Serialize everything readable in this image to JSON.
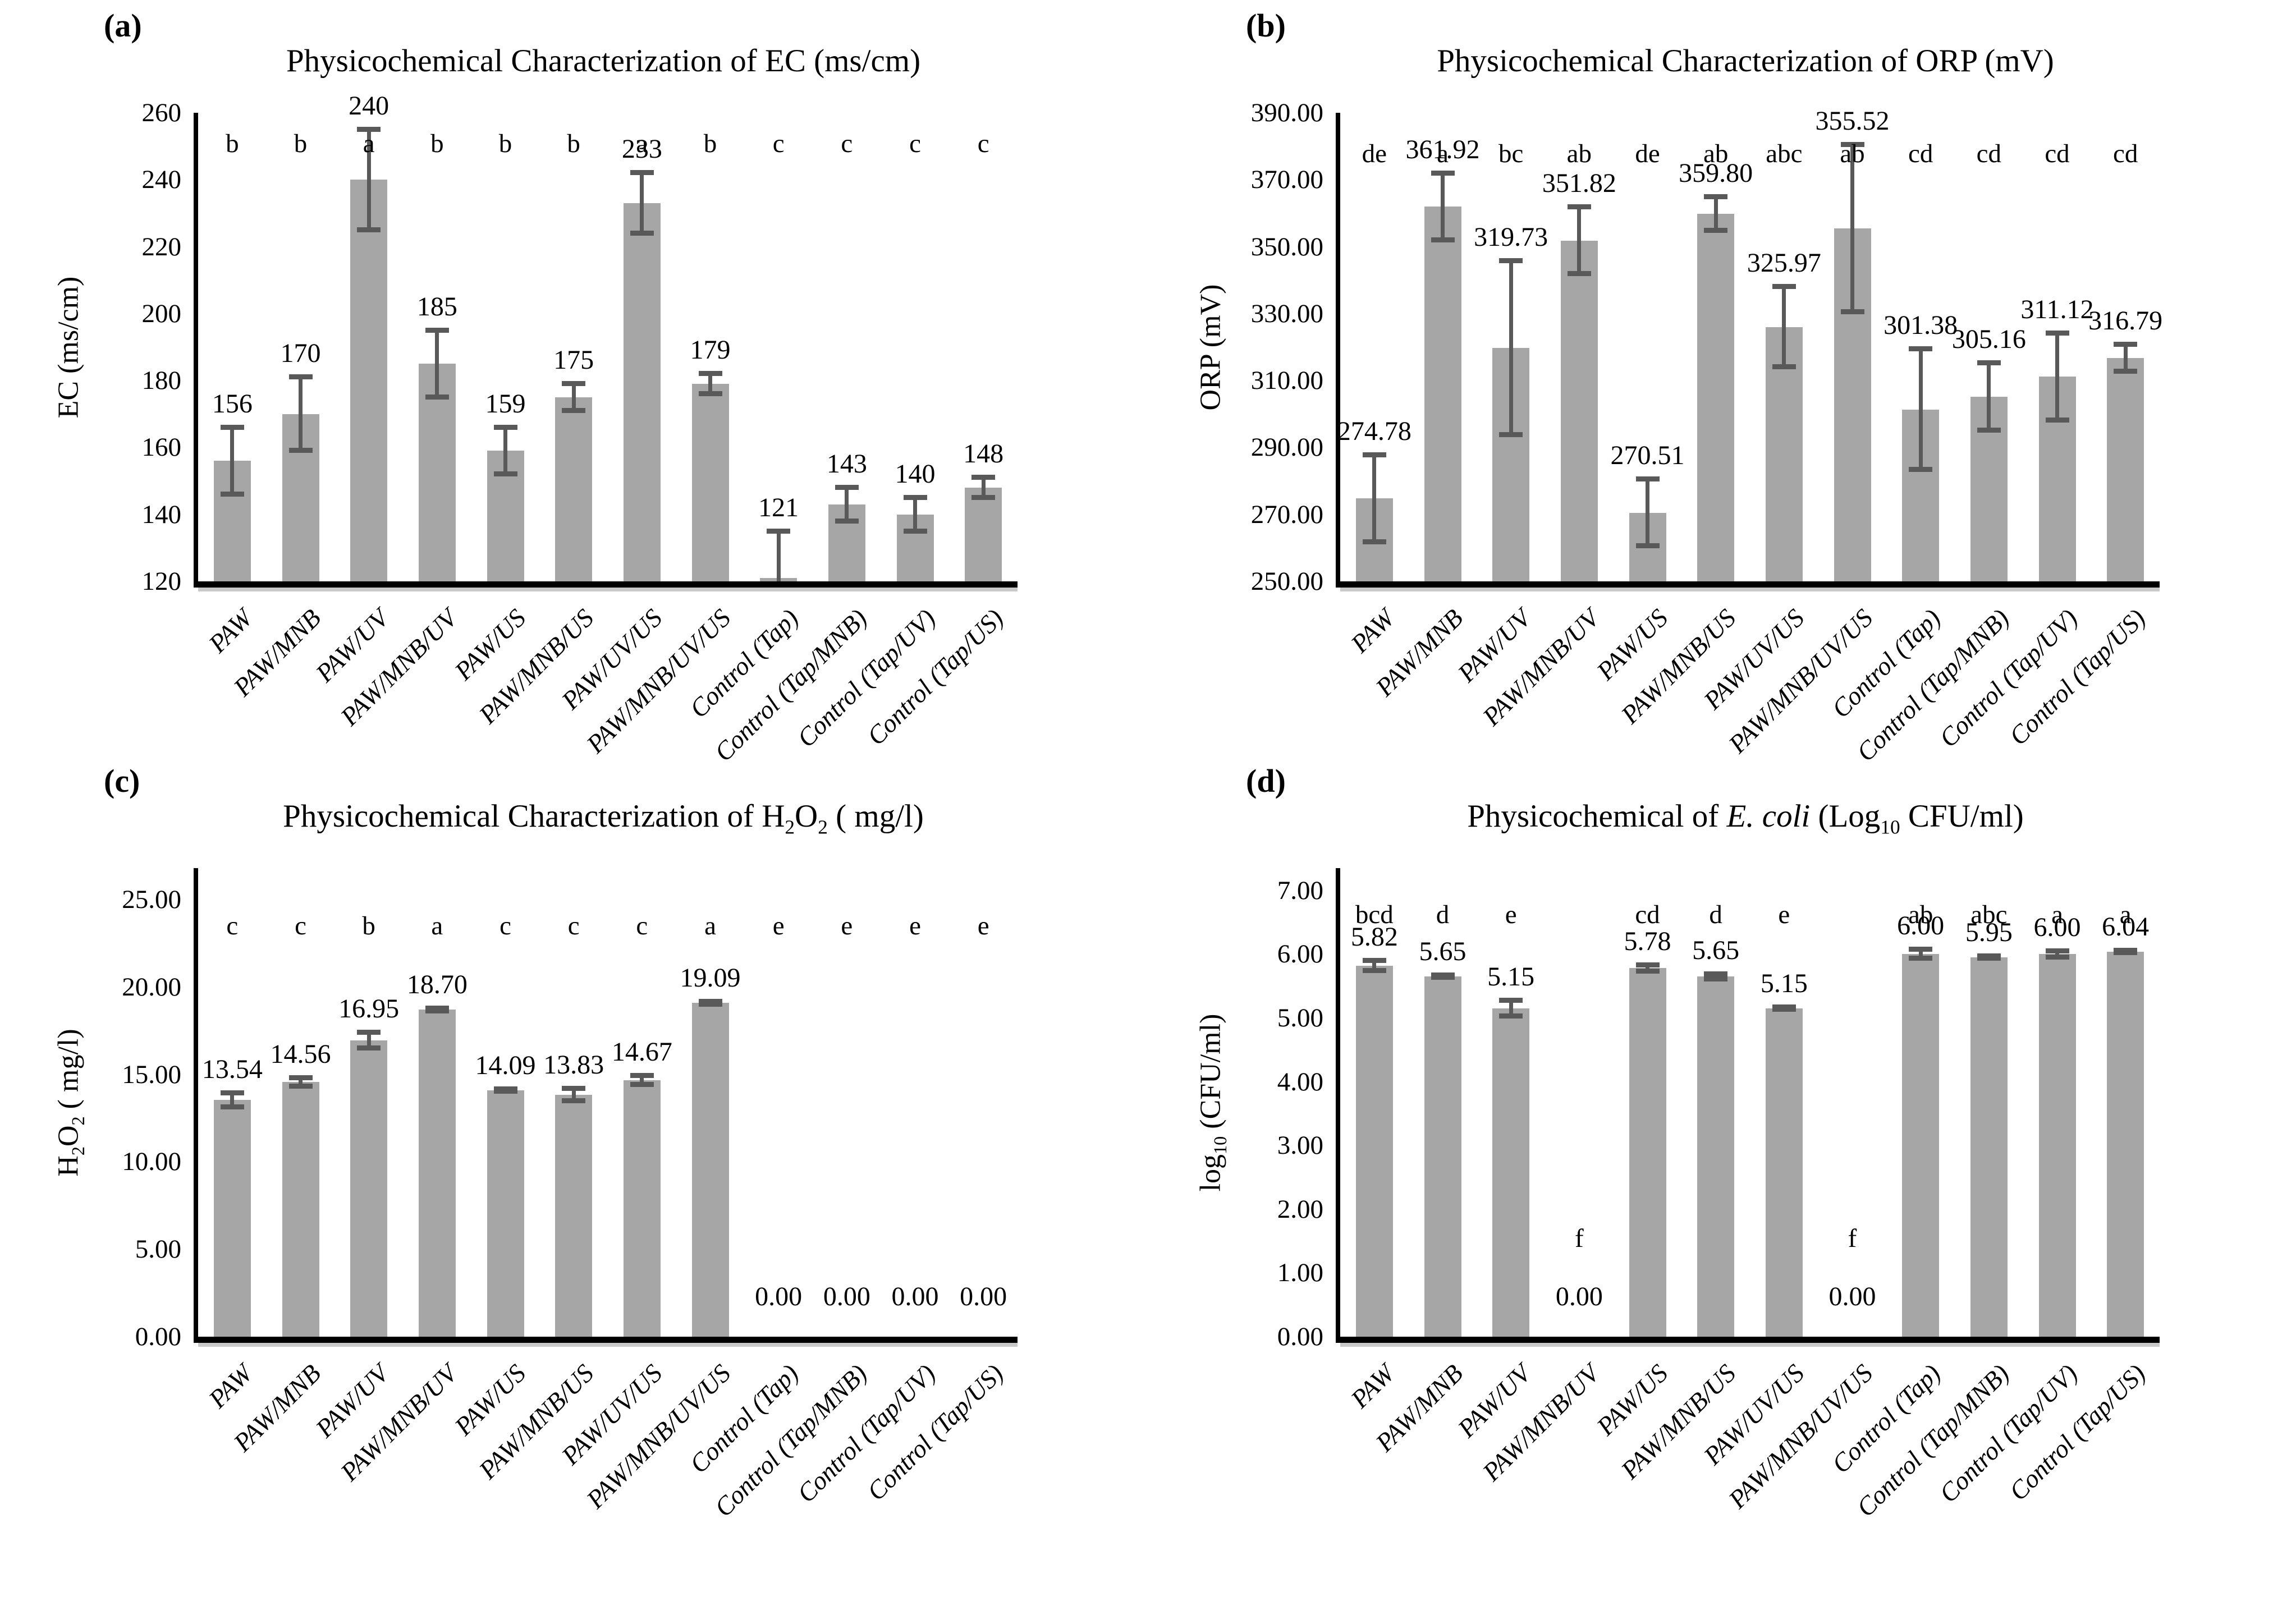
{
  "page": {
    "background": "#ffffff"
  },
  "colors": {
    "bar": "#a6a6a6",
    "error_bar": "#595959",
    "axis": "#000000",
    "axis_shadow": "#c9c9c9",
    "text": "#000000"
  },
  "chart_data": [
    {
      "type": "bar",
      "panel_label": "(a)",
      "title": "Physicochemical Characterization of EC (ms/cm)",
      "xlabel": "",
      "ylabel": "EC (ms/cm)",
      "ylim": [
        120,
        260
      ],
      "ytick_step": 20,
      "ytick_decimals": 0,
      "axis_headroom_units": 0,
      "grid": false,
      "legend": "none",
      "categories": [
        "PAW",
        "PAW/MNB",
        "PAW/UV",
        "PAW/MNB/UV",
        "PAW/US",
        "PAW/MNB/US",
        "PAW/UV/US",
        "PAW/MNB/UV/US",
        "Control (Tap)",
        "Control (Tap/MNB)",
        "Control (Tap/UV)",
        "Control (Tap/US)"
      ],
      "value_labels": [
        "156",
        "170",
        "240",
        "185",
        "159",
        "175",
        "233",
        "179",
        "121",
        "143",
        "140",
        "148"
      ],
      "values": [
        156,
        170,
        240,
        185,
        159,
        175,
        233,
        179,
        121,
        143,
        140,
        148
      ],
      "errors": [
        10,
        11,
        15,
        10,
        7,
        4,
        9,
        3,
        14,
        5,
        5,
        3
      ],
      "sig_letters": [
        "b",
        "b",
        "a",
        "b",
        "b",
        "b",
        "a",
        "b",
        "c",
        "c",
        "c",
        "c"
      ],
      "zero_letter_low": false
    },
    {
      "type": "bar",
      "panel_label": "(b)",
      "title": "Physicochemical Characterization of ORP (mV)",
      "xlabel": "",
      "ylabel": "ORP (mV)",
      "ylim": [
        250,
        390
      ],
      "ytick_step": 20,
      "ytick_decimals": 2,
      "axis_headroom_units": 0,
      "grid": false,
      "legend": "none",
      "categories": [
        "PAW",
        "PAW/MNB",
        "PAW/UV",
        "PAW/MNB/UV",
        "PAW/US",
        "PAW/MNB/US",
        "PAW/UV/US",
        "PAW/MNB/UV/US",
        "Control (Tap)",
        "Control (Tap/MNB)",
        "Control (Tap/UV)",
        "Control (Tap/US)"
      ],
      "value_labels": [
        "274.78",
        "361.92",
        "319.73",
        "351.82",
        "270.51",
        "359.80",
        "325.97",
        "355.52",
        "301.38",
        "305.16",
        "311.12",
        "316.79"
      ],
      "values": [
        274.78,
        361.92,
        319.73,
        351.82,
        270.51,
        359.8,
        325.97,
        355.52,
        301.38,
        305.16,
        311.12,
        316.79
      ],
      "errors": [
        13,
        10,
        26,
        10,
        10,
        5,
        12,
        25,
        18,
        10,
        13,
        4
      ],
      "sig_letters": [
        "de",
        "a",
        "bc",
        "ab",
        "de",
        "ab",
        "abc",
        "ab",
        "cd",
        "cd",
        "cd",
        "cd"
      ],
      "zero_letter_low": false
    },
    {
      "type": "bar",
      "panel_label": "(c)",
      "title": "Physicochemical Characterization of H2O2 ( mg/l)",
      "xlabel": "",
      "ylabel": "H2O2 ( mg/l)",
      "ylim": [
        0,
        25
      ],
      "ytick_step": 5,
      "ytick_decimals": 2,
      "axis_headroom_units": 1.8,
      "grid": false,
      "legend": "none",
      "categories": [
        "PAW",
        "PAW/MNB",
        "PAW/UV",
        "PAW/MNB/UV",
        "PAW/US",
        "PAW/MNB/US",
        "PAW/UV/US",
        "PAW/MNB/UV/US",
        "Control (Tap)",
        "Control (Tap/MNB)",
        "Control (Tap/UV)",
        "Control (Tap/US)"
      ],
      "value_labels": [
        "13.54",
        "14.56",
        "16.95",
        "18.70",
        "14.09",
        "13.83",
        "14.67",
        "19.09",
        "0.00",
        "0.00",
        "0.00",
        "0.00"
      ],
      "values": [
        13.54,
        14.56,
        16.95,
        18.7,
        14.09,
        13.83,
        14.67,
        19.09,
        0,
        0,
        0,
        0
      ],
      "errors": [
        0.4,
        0.25,
        0.45,
        0.08,
        0.06,
        0.35,
        0.25,
        0.08,
        0,
        0,
        0,
        0
      ],
      "sig_letters": [
        "c",
        "c",
        "b",
        "a",
        "c",
        "c",
        "c",
        "a",
        "e",
        "e",
        "e",
        "e"
      ],
      "zero_letter_low": false
    },
    {
      "type": "bar",
      "panel_label": "(d)",
      "title": "Physicochemical of E. coli (Log10 CFU/ml)",
      "xlabel": "",
      "ylabel": "log10 (CFU/ml)",
      "ylim": [
        0,
        7
      ],
      "ytick_step": 1,
      "ytick_decimals": 2,
      "axis_headroom_units": 0.35,
      "grid": false,
      "legend": "none",
      "categories": [
        "PAW",
        "PAW/MNB",
        "PAW/UV",
        "PAW/MNB/UV",
        "PAW/US",
        "PAW/MNB/US",
        "PAW/UV/US",
        "PAW/MNB/UV/US",
        "Control (Tap)",
        "Control (Tap/MNB)",
        "Control (Tap/UV)",
        "Control (Tap/US)"
      ],
      "value_labels": [
        "5.82",
        "5.65",
        "5.15",
        "0.00",
        "5.78",
        "5.65",
        "5.15",
        "0.00",
        "6.00",
        "5.95",
        "6.00",
        "6.04"
      ],
      "values": [
        5.82,
        5.65,
        5.15,
        0,
        5.78,
        5.65,
        5.15,
        0,
        6.0,
        5.95,
        6.0,
        6.04
      ],
      "errors": [
        0.08,
        0.02,
        0.12,
        0,
        0.05,
        0.04,
        0.02,
        0,
        0.07,
        0.02,
        0.05,
        0.02
      ],
      "sig_letters": [
        "bcd",
        "d",
        "e",
        "f",
        "cd",
        "d",
        "e",
        "f",
        "ab",
        "abc",
        "a",
        "a"
      ],
      "zero_letter_low": true
    }
  ]
}
